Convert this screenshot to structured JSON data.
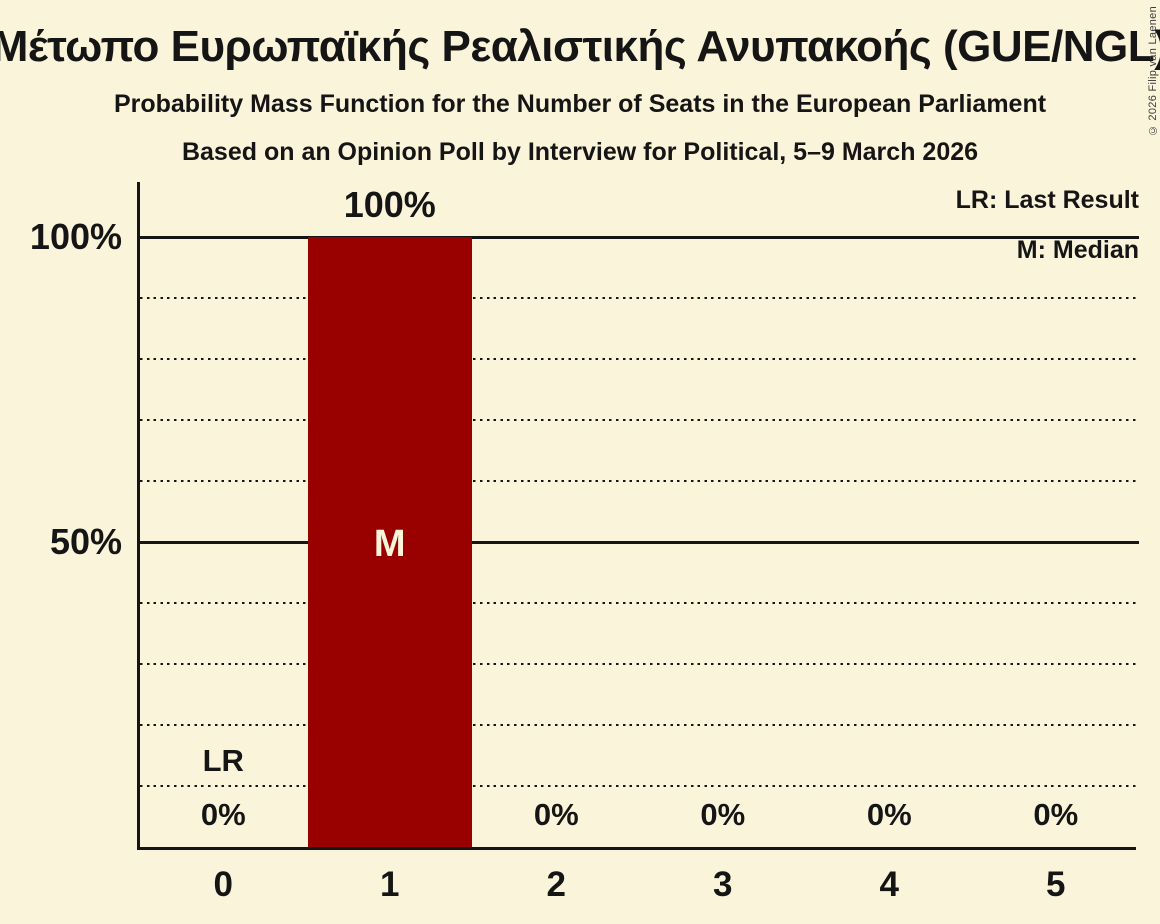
{
  "header": {
    "title": "Μέτωπο Ευρωπαϊκής Ρεαλιστικής Ανυπακοής (GUE/NGL)",
    "subtitle": "Probability Mass Function for the Number of Seats in the European Parliament",
    "poll_line": "Based on an Opinion Poll by Interview for Political, 5–9 March 2026",
    "copyright": "© 2026 Filip van Laenen"
  },
  "legend": {
    "last_result": "LR: Last Result",
    "median": "M: Median"
  },
  "chart_data": {
    "type": "bar",
    "title": "Μέτωπο Ευρωπαϊκής Ρεαλιστικής Ανυπακοής (GUE/NGL)",
    "subtitle": "Probability Mass Function for the Number of Seats in the European Parliament",
    "xlabel": "",
    "ylabel": "",
    "categories": [
      "0",
      "1",
      "2",
      "3",
      "4",
      "5"
    ],
    "values": [
      0,
      100,
      0,
      0,
      0,
      0
    ],
    "value_labels": [
      "0%",
      "100%",
      "0%",
      "0%",
      "0%",
      "0%"
    ],
    "ylim": [
      0,
      100
    ],
    "yticks": [
      {
        "pct": 100,
        "label": "100%"
      },
      {
        "pct": 50,
        "label": "50%"
      }
    ],
    "solid_gridlines_pct": [
      100,
      50
    ],
    "dotted_gridlines_pct": [
      90,
      80,
      70,
      60,
      40,
      30,
      20,
      10
    ],
    "legend_position": "top-right",
    "median": {
      "category": "1",
      "marker": "M"
    },
    "last_result": {
      "category": "0",
      "marker": "LR"
    },
    "colors": {
      "background": "#FAF5DA",
      "bar": "#990000",
      "text": "#151515",
      "median_marker_text": "#FAF5DA"
    }
  }
}
